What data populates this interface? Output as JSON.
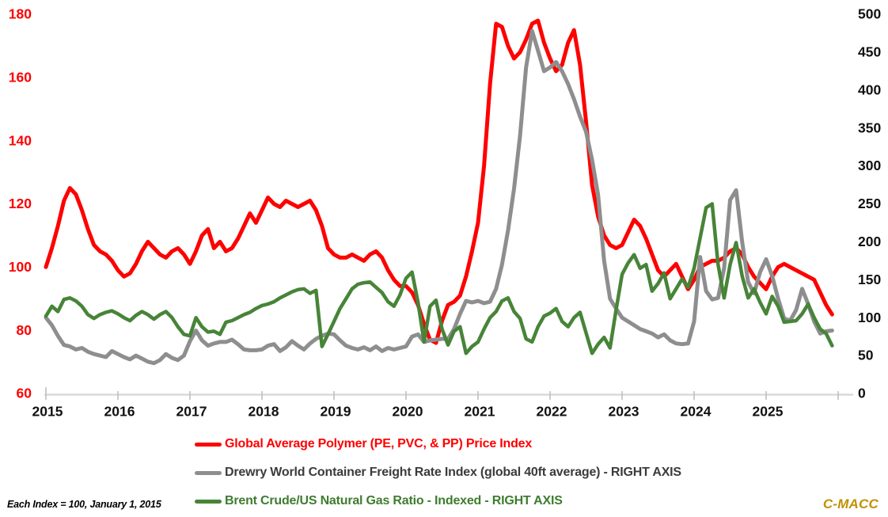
{
  "chart_data": {
    "type": "line",
    "title": "",
    "frequency": "monthly",
    "x_start": "2015-01",
    "x_end": "2025-12",
    "x_tick_labels": [
      "2015",
      "2016",
      "2017",
      "2018",
      "2019",
      "2020",
      "2021",
      "2022",
      "2023",
      "2024",
      "2025"
    ],
    "left_axis": {
      "ticks": [
        180,
        160,
        140,
        120,
        100,
        80,
        60
      ],
      "range": [
        60,
        180
      ],
      "label_color": "#FF0000"
    },
    "right_axis": {
      "ticks": [
        500,
        450,
        400,
        350,
        300,
        250,
        200,
        150,
        100,
        50,
        0
      ],
      "range": [
        0,
        500
      ],
      "label_color": "#111111"
    },
    "axis_line_color": "#D9D9D9",
    "tick_mark_color": "#BFBFBF",
    "x_label_color": "#111111",
    "grid": "off",
    "legend_position": "bottom",
    "series": [
      {
        "name": "Global Average Polymer (PE, PVC, & PP) Price Index",
        "axis": "left",
        "color": "#FF0000",
        "legend_text_color": "#FF0000",
        "stroke_width": 5,
        "values": [
          100,
          106,
          113,
          121,
          125,
          123,
          118,
          112,
          107,
          105,
          104,
          102,
          99,
          97,
          98,
          101,
          105,
          108,
          106,
          104,
          103,
          105,
          106,
          104,
          101,
          105,
          110,
          112,
          106,
          108,
          105,
          106,
          109,
          113,
          117,
          114,
          118,
          122,
          120,
          119,
          121,
          120,
          119,
          120,
          121,
          118,
          113,
          106,
          104,
          103,
          103,
          104,
          103,
          102,
          104,
          105,
          103,
          99,
          96,
          94,
          94,
          92,
          88,
          82,
          77,
          76,
          83,
          88,
          89,
          91,
          97,
          105,
          114,
          132,
          158,
          177,
          176,
          170,
          166,
          168,
          172,
          177,
          178,
          171,
          166,
          162,
          164,
          171,
          175,
          164,
          146,
          126,
          116,
          110,
          107,
          106,
          107,
          111,
          115,
          113,
          109,
          104,
          99,
          97,
          99,
          101,
          97,
          93,
          96,
          100,
          101,
          102,
          102,
          103,
          105,
          106,
          104,
          100,
          97,
          95,
          93,
          97,
          100,
          101,
          100,
          99,
          98,
          97,
          96,
          92,
          88,
          85
        ]
      },
      {
        "name": "Drewry World Container Freight Rate Index (global 40ft average) - RIGHT AXIS",
        "axis": "right",
        "color": "#8E8E8E",
        "legend_text_color": "#3B3B3B",
        "stroke_width": 5,
        "values": [
          100,
          90,
          76,
          64,
          62,
          58,
          60,
          55,
          52,
          50,
          48,
          56,
          52,
          48,
          45,
          50,
          46,
          42,
          40,
          44,
          52,
          47,
          44,
          50,
          69,
          83,
          70,
          63,
          66,
          68,
          68,
          71,
          65,
          58,
          57,
          57,
          58,
          63,
          65,
          56,
          61,
          69,
          63,
          58,
          66,
          72,
          76,
          79,
          78,
          70,
          63,
          60,
          58,
          61,
          57,
          62,
          56,
          60,
          58,
          60,
          62,
          75,
          78,
          68,
          70,
          71,
          72,
          72,
          85,
          105,
          122,
          120,
          122,
          119,
          121,
          138,
          170,
          215,
          270,
          340,
          430,
          478,
          452,
          425,
          430,
          437,
          425,
          408,
          388,
          365,
          345,
          308,
          262,
          175,
          125,
          112,
          100,
          95,
          90,
          85,
          82,
          79,
          74,
          78,
          70,
          66,
          65,
          66,
          95,
          180,
          135,
          124,
          126,
          165,
          255,
          268,
          200,
          147,
          132,
          160,
          177,
          155,
          125,
          99,
          96,
          110,
          138,
          118,
          95,
          79,
          82,
          83
        ]
      },
      {
        "name": "Brent Crude/US Natural Gas Ratio - Indexed - RIGHT AXIS",
        "axis": "right",
        "color": "#478438",
        "legend_text_color": "#3E7C2F",
        "stroke_width": 4.5,
        "values": [
          102,
          115,
          108,
          124,
          126,
          122,
          115,
          104,
          99,
          104,
          107,
          109,
          105,
          100,
          96,
          103,
          108,
          104,
          98,
          104,
          108,
          100,
          88,
          78,
          76,
          100,
          88,
          81,
          82,
          78,
          94,
          96,
          100,
          104,
          107,
          112,
          116,
          118,
          121,
          126,
          130,
          134,
          137,
          138,
          132,
          136,
          62,
          78,
          95,
          112,
          125,
          138,
          144,
          146,
          147,
          140,
          133,
          121,
          115,
          130,
          152,
          160,
          120,
          68,
          115,
          123,
          85,
          64,
          82,
          88,
          53,
          62,
          68,
          85,
          100,
          108,
          122,
          126,
          108,
          99,
          72,
          68,
          88,
          102,
          106,
          112,
          95,
          88,
          100,
          107,
          80,
          53,
          65,
          74,
          60,
          110,
          157,
          172,
          183,
          165,
          170,
          135,
          145,
          159,
          125,
          138,
          151,
          140,
          165,
          205,
          245,
          250,
          170,
          126,
          170,
          199,
          155,
          126,
          138,
          120,
          105,
          128,
          115,
          94,
          95,
          96,
          105,
          118,
          100,
          85,
          79,
          63
        ]
      }
    ],
    "footnote": "Each Index = 100, January 1, 2015",
    "watermark": {
      "text": "C-MACC",
      "color": "#C09104"
    }
  }
}
